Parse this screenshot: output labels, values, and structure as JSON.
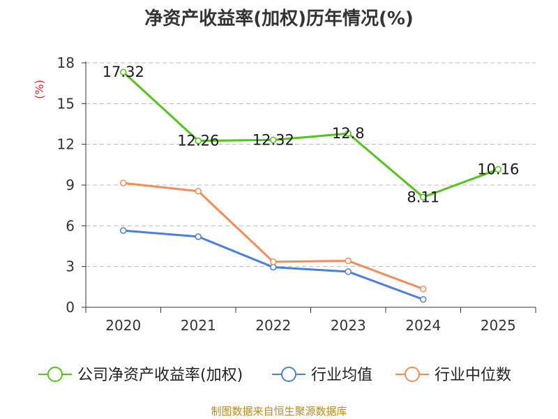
{
  "colors": {
    "series1": "#52c41a",
    "series2": "#4a7fdb",
    "series3": "#f48c5a",
    "ylabel": "#d63030",
    "source": "#b88a20",
    "axis": "#333333",
    "grid": "#bbbbbb"
  },
  "footer": {
    "source": "制图数据来自恒生聚源数据库"
  },
  "chart_data": {
    "type": "line",
    "title": "净资产收益率(加权)历年情况(%)",
    "xlabel": "",
    "ylabel": "(%)",
    "ylim": [
      0,
      18
    ],
    "yticks": [
      0,
      3,
      6,
      9,
      12,
      15,
      18
    ],
    "grid": true,
    "legend_position": "bottom",
    "categories": [
      "2020",
      "2021",
      "2022",
      "2023",
      "2024",
      "2025"
    ],
    "series": [
      {
        "name": "公司净资产收益率(加权)",
        "values": [
          17.32,
          12.26,
          12.32,
          12.8,
          8.11,
          10.16
        ],
        "labels": [
          "17.32",
          "12.26",
          "12.32",
          "12.8",
          "8.11",
          "10.16"
        ]
      },
      {
        "name": "行业均值",
        "values": [
          5.65,
          5.2,
          2.95,
          2.62,
          0.58,
          null
        ]
      },
      {
        "name": "行业中位数",
        "values": [
          9.15,
          8.55,
          3.35,
          3.42,
          1.35,
          null
        ]
      }
    ]
  }
}
